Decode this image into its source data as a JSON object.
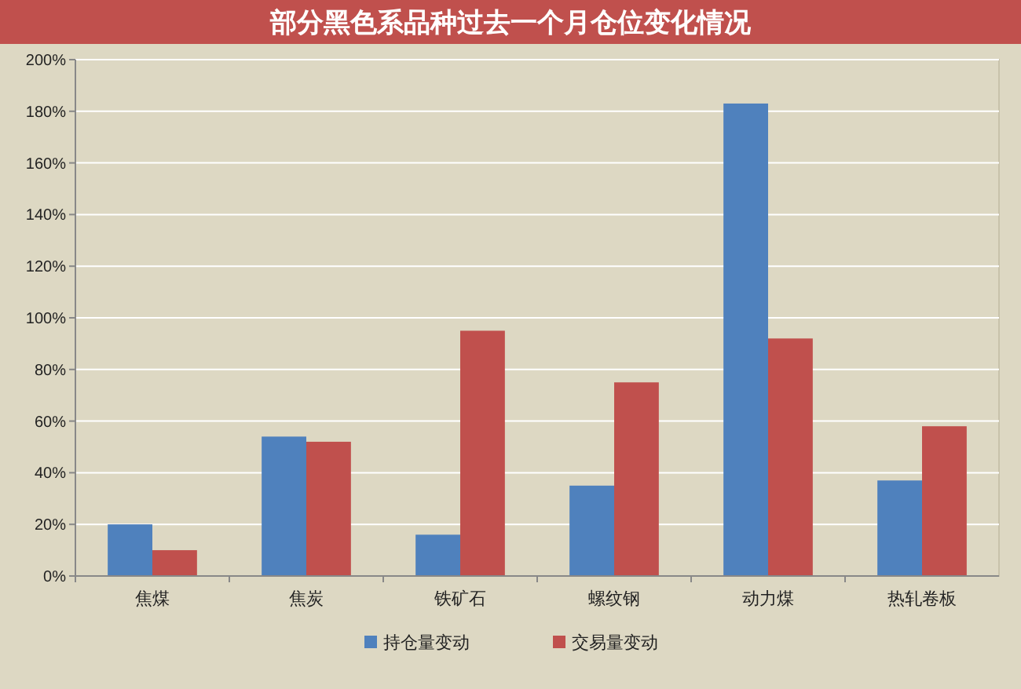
{
  "chart_data": {
    "type": "bar",
    "title": "部分黑色系品种过去一个月仓位变化情况",
    "categories": [
      "焦煤",
      "焦炭",
      "铁矿石",
      "螺纹钢",
      "动力煤",
      "热轧卷板"
    ],
    "series": [
      {
        "name": "持仓量变动",
        "color": "#4f81bd",
        "values": [
          20,
          54,
          16,
          35,
          183,
          37
        ]
      },
      {
        "name": "交易量变动",
        "color": "#c0504d",
        "values": [
          10,
          52,
          95,
          75,
          92,
          58
        ]
      }
    ],
    "ylim": [
      0,
      200
    ],
    "yticks": [
      {
        "value": 0,
        "label": "0%"
      },
      {
        "value": 20,
        "label": "20%"
      },
      {
        "value": 40,
        "label": "40%"
      },
      {
        "value": 60,
        "label": "60%"
      },
      {
        "value": 80,
        "label": "80%"
      },
      {
        "value": 100,
        "label": "100%"
      },
      {
        "value": 120,
        "label": "120%"
      },
      {
        "value": 140,
        "label": "140%"
      },
      {
        "value": 160,
        "label": "160%"
      },
      {
        "value": 180,
        "label": "180%"
      },
      {
        "value": 200,
        "label": "200%"
      }
    ],
    "grid": "y",
    "legend": "bottom"
  }
}
